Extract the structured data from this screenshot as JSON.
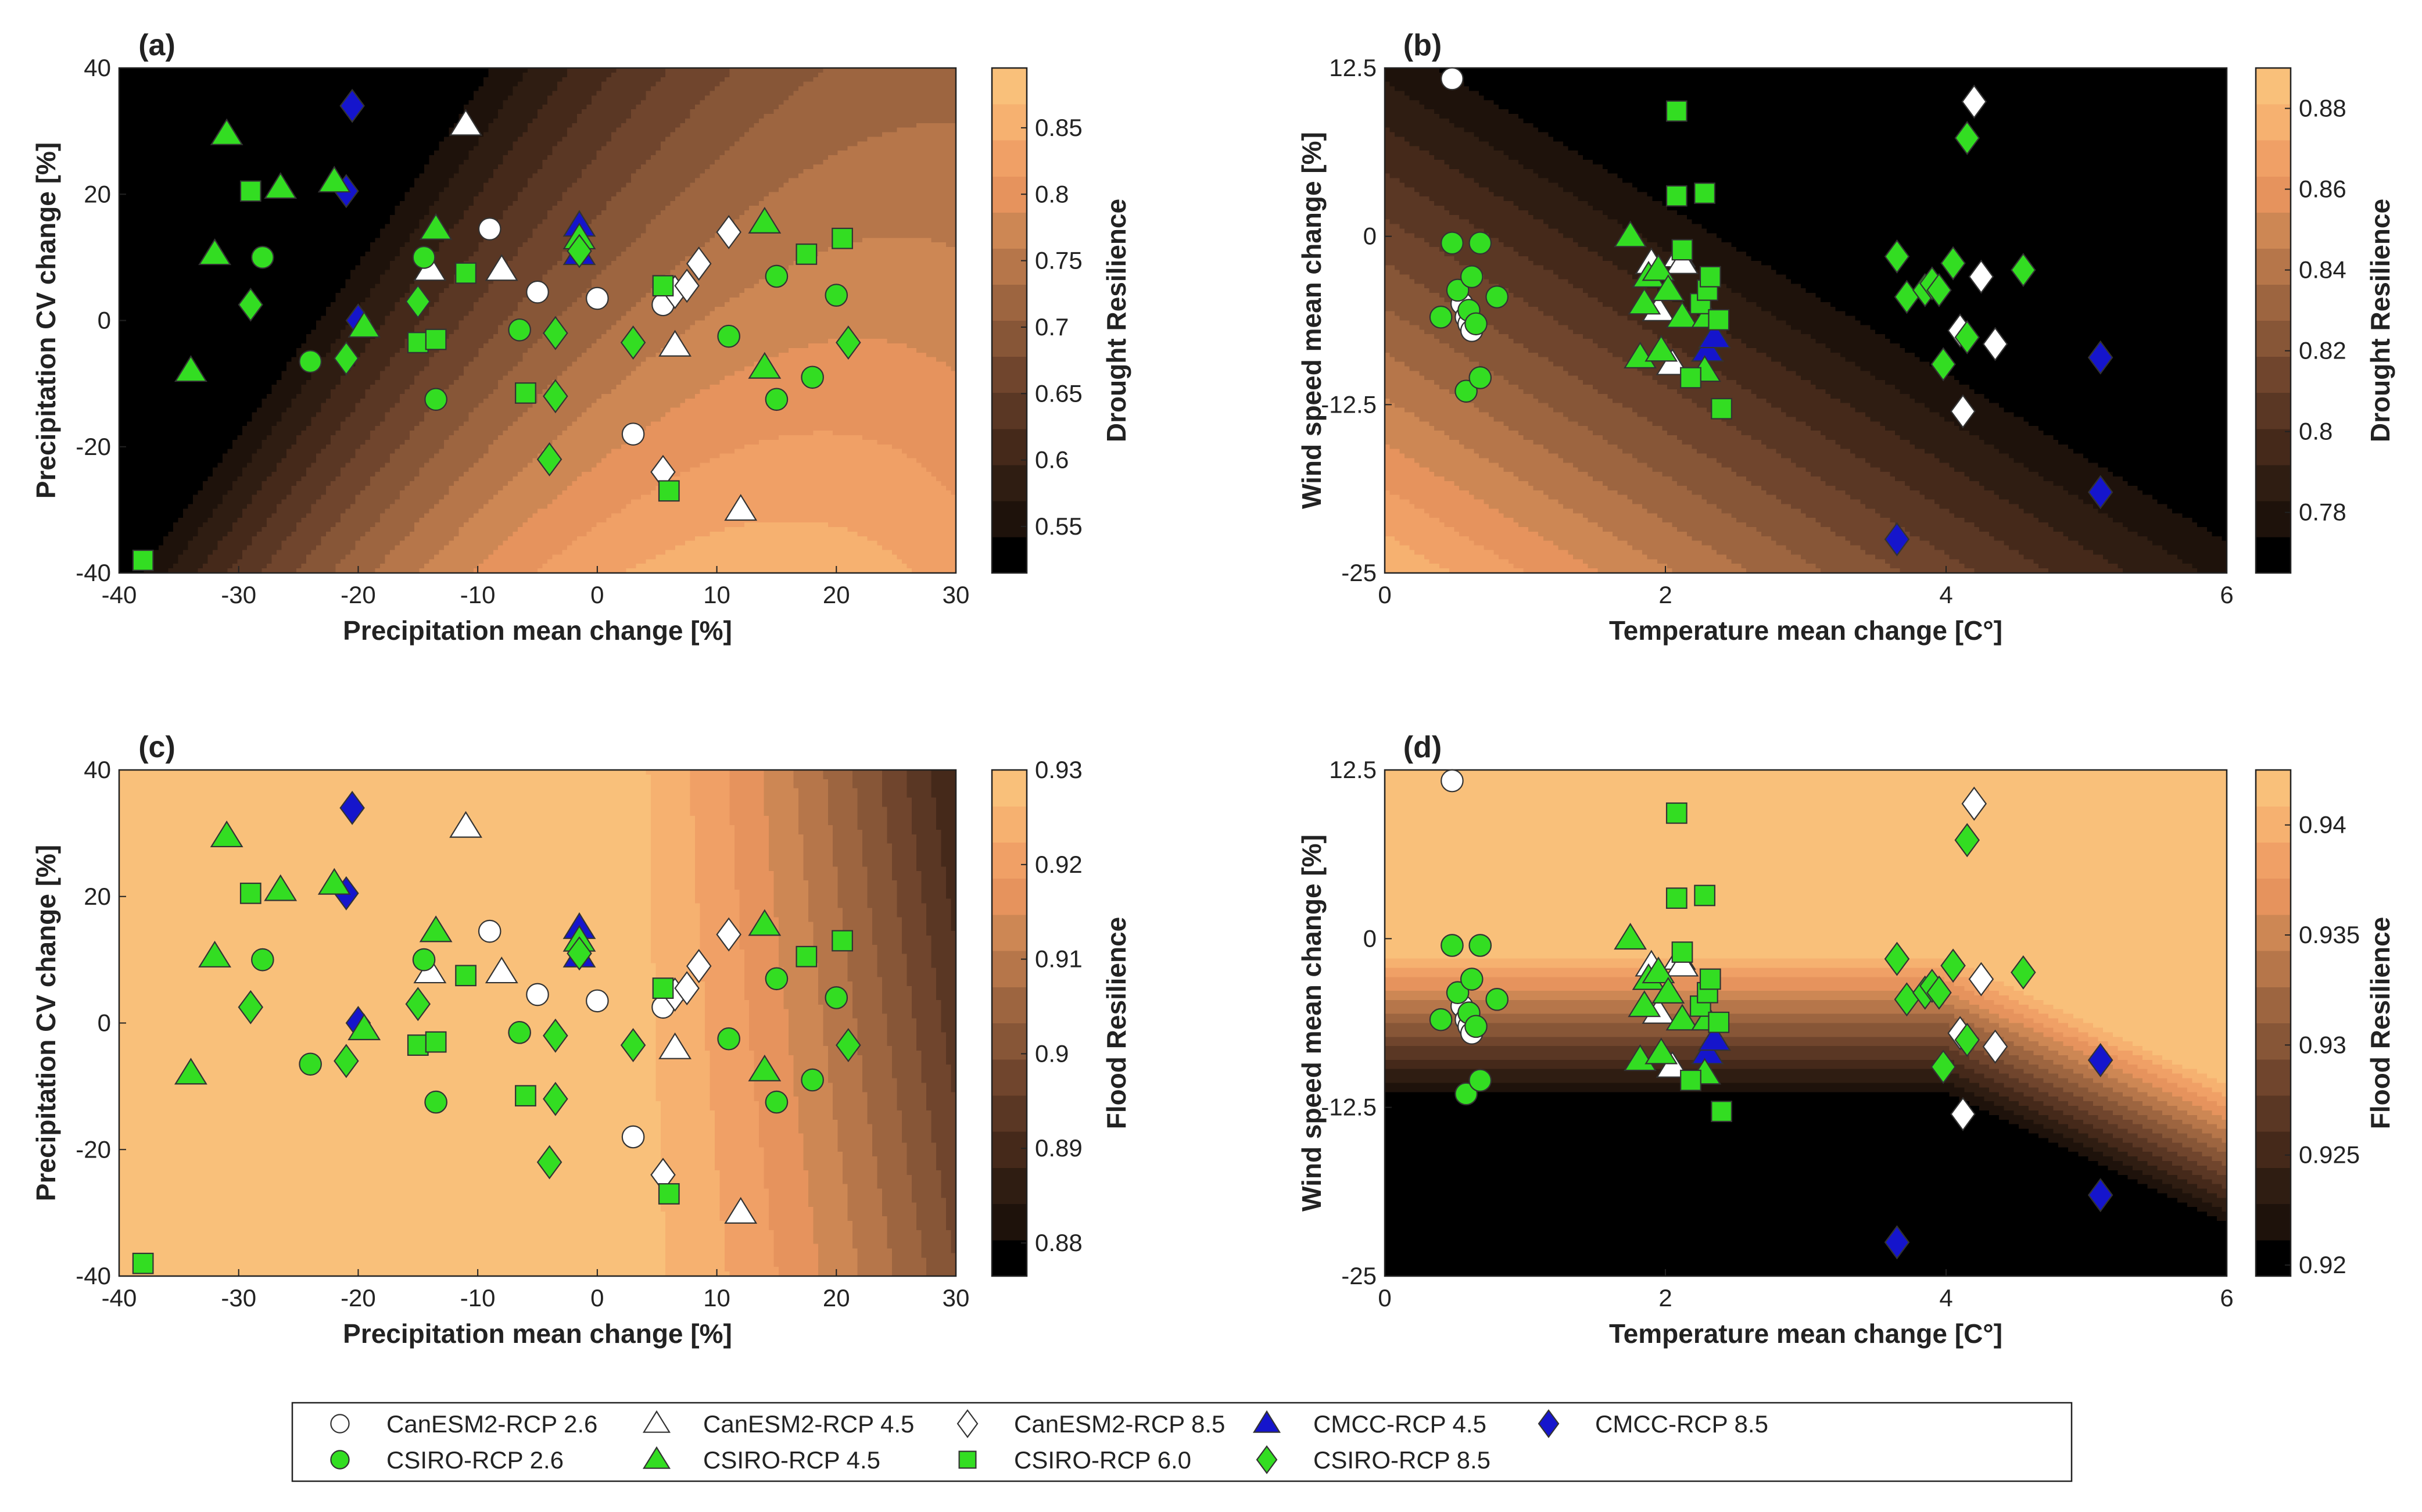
{
  "colors": {
    "contour": [
      "#000000",
      "#1e120b",
      "#2f1d12",
      "#45291a",
      "#5a3724",
      "#70452d",
      "#875637",
      "#9d6540",
      "#b6764a",
      "#cd8754",
      "#e6935d",
      "#f0a066",
      "#f6b170",
      "#f9c07a"
    ],
    "white_fill": "#ffffff",
    "green_fill": "#33dd22",
    "blue_fill": "#1515cc",
    "edge": "#333333",
    "frame": "#222222"
  },
  "legend": {
    "items": [
      {
        "key": "canesm2_26",
        "label": "CanESM2-RCP 2.6",
        "marker": "circle",
        "color": "white"
      },
      {
        "key": "canesm2_45",
        "label": "CanESM2-RCP 4.5",
        "marker": "triangle",
        "color": "white"
      },
      {
        "key": "canesm2_85",
        "label": "CanESM2-RCP 8.5",
        "marker": "diamond",
        "color": "white"
      },
      {
        "key": "cmcc_45",
        "label": "CMCC-RCP 4.5",
        "marker": "triangle",
        "color": "blue"
      },
      {
        "key": "cmcc_85",
        "label": "CMCC-RCP 8.5",
        "marker": "diamond",
        "color": "blue"
      },
      {
        "key": "csiro_26",
        "label": "CSIRO-RCP 2.6",
        "marker": "circle",
        "color": "green"
      },
      {
        "key": "csiro_45",
        "label": "CSIRO-RCP 4.5",
        "marker": "triangle",
        "color": "green"
      },
      {
        "key": "csiro_60",
        "label": "CSIRO-RCP 6.0",
        "marker": "square",
        "color": "green"
      },
      {
        "key": "csiro_85",
        "label": "CSIRO-RCP 8.5",
        "marker": "diamond",
        "color": "green"
      }
    ]
  },
  "chart_data": [
    {
      "panel": "(a)",
      "type": "contour+scatter",
      "xlabel": "Precipitation mean change [%]",
      "ylabel": "Precipitation CV change [%]",
      "xlim": [
        -40,
        30
      ],
      "ylim": [
        -40,
        40
      ],
      "xticks": [
        -40,
        -30,
        -20,
        -10,
        0,
        10,
        20,
        30
      ],
      "yticks": [
        -40,
        -20,
        0,
        20,
        40
      ],
      "colorbar": {
        "label": "Drought Resilience",
        "range": [
          0.515,
          0.895
        ],
        "ticks": [
          "0.55",
          "0.6",
          "0.65",
          "0.7",
          "0.75",
          "0.8",
          "0.85"
        ],
        "tick_values": [
          0.55,
          0.6,
          0.65,
          0.7,
          0.75,
          0.8,
          0.85
        ]
      },
      "surface": {
        "kind": "drought_precip"
      },
      "points": {
        "canesm2_26": [
          [
            -9,
            14.5
          ],
          [
            -5,
            4.5
          ],
          [
            0,
            3.5
          ],
          [
            3,
            -18
          ],
          [
            5.5,
            2.5
          ]
        ],
        "canesm2_45": [
          [
            -11,
            31
          ],
          [
            -14,
            8
          ],
          [
            -8,
            8
          ],
          [
            6.5,
            -4
          ],
          [
            12,
            -30
          ]
        ],
        "canesm2_85": [
          [
            5.5,
            -24
          ],
          [
            6.5,
            4.5
          ],
          [
            7.5,
            5.5
          ],
          [
            8.5,
            9
          ],
          [
            11,
            14
          ]
        ],
        "cmcc_45": [
          [
            -1.5,
            15
          ],
          [
            -1.5,
            10.5
          ]
        ],
        "cmcc_85": [
          [
            -20.5,
            34
          ],
          [
            -21,
            20.5
          ],
          [
            -20,
            0
          ]
        ],
        "csiro_26": [
          [
            -28,
            10
          ],
          [
            -24,
            -6.5
          ],
          [
            -14.5,
            10
          ],
          [
            -13.5,
            -12.5
          ],
          [
            -6.5,
            -1.5
          ],
          [
            11,
            -2.5
          ],
          [
            15,
            7
          ],
          [
            15,
            -12.5
          ],
          [
            18,
            -9
          ],
          [
            20,
            4
          ]
        ],
        "csiro_45": [
          [
            -34,
            -8
          ],
          [
            -31,
            29.5
          ],
          [
            -32,
            10.5
          ],
          [
            -26.5,
            21
          ],
          [
            -22,
            22
          ],
          [
            -19.5,
            -1
          ],
          [
            -13.5,
            14.5
          ],
          [
            -1.5,
            13
          ],
          [
            14,
            15.5
          ],
          [
            14,
            -7.5
          ]
        ],
        "csiro_60": [
          [
            -38,
            -38
          ],
          [
            -29,
            20.5
          ],
          [
            -15,
            -3.5
          ],
          [
            -13.5,
            -3
          ],
          [
            -11,
            7.5
          ],
          [
            -6,
            -11.5
          ],
          [
            5.5,
            5.5
          ],
          [
            6,
            -27
          ],
          [
            17.5,
            10.5
          ],
          [
            20.5,
            13
          ]
        ],
        "csiro_85": [
          [
            -29,
            2.5
          ],
          [
            -21,
            -6
          ],
          [
            -15,
            3
          ],
          [
            -3.5,
            -2
          ],
          [
            -3.5,
            -12
          ],
          [
            -4,
            -22
          ],
          [
            -1.5,
            11
          ],
          [
            3,
            -3.5
          ],
          [
            21,
            -3.5
          ]
        ]
      }
    },
    {
      "panel": "(b)",
      "type": "contour+scatter",
      "xlabel": "Temperature mean change [C°]",
      "ylabel": "Wind speed mean change [%]",
      "xlim": [
        0,
        6
      ],
      "ylim": [
        -25,
        12.5
      ],
      "xticks": [
        0,
        2,
        4,
        6
      ],
      "yticks": [
        -25,
        -12.5,
        0,
        12.5
      ],
      "colorbar": {
        "label": "Drought Resilience",
        "range": [
          0.765,
          0.89
        ],
        "ticks": [
          "0.78",
          "0.8",
          "0.82",
          "0.84",
          "0.86",
          "0.88"
        ],
        "tick_values": [
          0.78,
          0.8,
          0.82,
          0.84,
          0.86,
          0.88
        ]
      },
      "surface": {
        "kind": "drought_temp"
      },
      "points": {
        "canesm2_26": [
          [
            0.48,
            11.7
          ],
          [
            0.55,
            -5
          ],
          [
            0.58,
            -6
          ],
          [
            0.6,
            -6.5
          ],
          [
            0.62,
            -7
          ]
        ],
        "canesm2_45": [
          [
            1.9,
            -2
          ],
          [
            1.95,
            -5.5
          ],
          [
            2.05,
            -9.5
          ],
          [
            2.1,
            -1.5
          ],
          [
            2.12,
            -2
          ]
        ],
        "canesm2_85": [
          [
            4.1,
            -7
          ],
          [
            4.12,
            -13
          ],
          [
            4.2,
            10
          ],
          [
            4.25,
            -3
          ],
          [
            4.35,
            -8
          ]
        ],
        "cmcc_45": [
          [
            2.3,
            -8.5
          ],
          [
            2.35,
            -7.5
          ]
        ],
        "cmcc_85": [
          [
            3.65,
            -22.5
          ],
          [
            5.1,
            -9
          ],
          [
            5.1,
            -19
          ]
        ],
        "csiro_26": [
          [
            0.4,
            -6
          ],
          [
            0.48,
            -0.5
          ],
          [
            0.52,
            -4
          ],
          [
            0.58,
            -11.5
          ],
          [
            0.6,
            -5.5
          ],
          [
            0.62,
            -3
          ],
          [
            0.65,
            -6.5
          ],
          [
            0.68,
            -0.5
          ],
          [
            0.68,
            -10.5
          ],
          [
            0.8,
            -4.5
          ]
        ],
        "csiro_45": [
          [
            1.75,
            0
          ],
          [
            1.82,
            -9
          ],
          [
            1.85,
            -5
          ],
          [
            1.88,
            -3
          ],
          [
            1.95,
            -2.5
          ],
          [
            1.97,
            -8.5
          ],
          [
            2.02,
            -4
          ],
          [
            2.12,
            -6
          ],
          [
            2.28,
            -10
          ],
          [
            2.3,
            -6
          ]
        ],
        "csiro_60": [
          [
            2.08,
            9.3
          ],
          [
            2.08,
            3
          ],
          [
            2.12,
            -1
          ],
          [
            2.18,
            -10.5
          ],
          [
            2.25,
            -5
          ],
          [
            2.28,
            3.2
          ],
          [
            2.3,
            -4
          ],
          [
            2.32,
            -3
          ],
          [
            2.38,
            -6.2
          ],
          [
            2.4,
            -12.8
          ]
        ],
        "csiro_85": [
          [
            3.65,
            -1.5
          ],
          [
            3.72,
            -4.5
          ],
          [
            3.85,
            -4
          ],
          [
            3.9,
            -3.5
          ],
          [
            3.95,
            -4
          ],
          [
            3.98,
            -9.5
          ],
          [
            4.05,
            -2
          ],
          [
            4.15,
            -7.5
          ],
          [
            4.15,
            7.3
          ],
          [
            4.55,
            -2.5
          ]
        ]
      }
    },
    {
      "panel": "(c)",
      "type": "contour+scatter",
      "xlabel": "Precipitation mean change [%]",
      "ylabel": "Precipitation CV change [%]",
      "xlim": [
        -40,
        30
      ],
      "ylim": [
        -40,
        40
      ],
      "xticks": [
        -40,
        -30,
        -20,
        -10,
        0,
        10,
        20,
        30
      ],
      "yticks": [
        -40,
        -20,
        0,
        20,
        40
      ],
      "colorbar": {
        "label": "Flood Resilience",
        "range": [
          0.8765,
          0.93
        ],
        "ticks": [
          "0.88",
          "0.89",
          "0.9",
          "0.91",
          "0.92",
          "0.93"
        ],
        "tick_values": [
          0.88,
          0.89,
          0.9,
          0.91,
          0.92,
          0.93
        ]
      },
      "surface": {
        "kind": "flood_precip"
      },
      "points": "same_as_panel_a"
    },
    {
      "panel": "(d)",
      "type": "contour+scatter",
      "xlabel": "Temperature mean change [C°]",
      "ylabel": "Wind speed mean change [%]",
      "xlim": [
        0,
        6
      ],
      "ylim": [
        -25,
        12.5
      ],
      "xticks": [
        0,
        2,
        4,
        6
      ],
      "yticks": [
        -25,
        -12.5,
        0,
        12.5
      ],
      "colorbar": {
        "label": "Flood Resilience",
        "range": [
          0.9195,
          0.9425
        ],
        "ticks": [
          "0.92",
          "0.925",
          "0.93",
          "0.935",
          "0.94"
        ],
        "tick_values": [
          0.92,
          0.925,
          0.93,
          0.935,
          0.94
        ]
      },
      "surface": {
        "kind": "flood_temp"
      },
      "points": "same_as_panel_b"
    }
  ]
}
